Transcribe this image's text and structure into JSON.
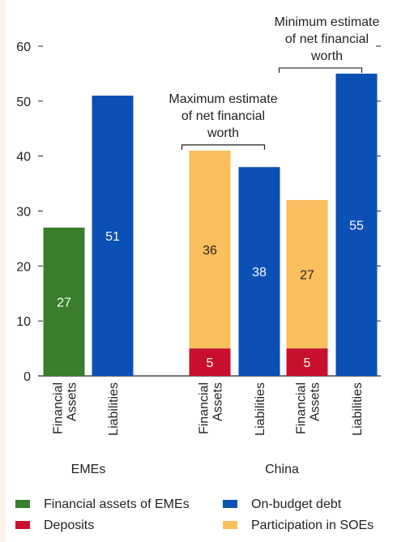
{
  "chart_data": {
    "type": "bar",
    "stacked": true,
    "ylim": [
      0,
      60
    ],
    "yticks": [
      0,
      10,
      20,
      30,
      40,
      50,
      60
    ],
    "groups": [
      {
        "label": "EMEs",
        "bars": [
          {
            "category": "Financial\nAssets",
            "segments": [
              {
                "series": "Financial assets of EMEs",
                "value": 27
              }
            ]
          },
          {
            "category": "Liabilities",
            "segments": [
              {
                "series": "On-budget debt",
                "value": 51
              }
            ]
          }
        ]
      },
      {
        "label": "China",
        "bars": [
          {
            "category": "Financial\nAssets",
            "segments": [
              {
                "series": "Deposits",
                "value": 5
              },
              {
                "series": "Participation in SOEs",
                "value": 36
              }
            ]
          },
          {
            "category": "Liabilities",
            "segments": [
              {
                "series": "On-budget debt",
                "value": 38
              }
            ]
          },
          {
            "category": "Financial\nAssets",
            "segments": [
              {
                "series": "Deposits",
                "value": 5
              },
              {
                "series": "Participation in SOEs",
                "value": 27
              }
            ]
          },
          {
            "category": "Liabilities",
            "segments": [
              {
                "series": "On-budget debt",
                "value": 55
              }
            ]
          }
        ]
      }
    ],
    "series": [
      {
        "name": "Financial assets of EMEs",
        "color": "#3a7d2c",
        "label_color": "#ffffff"
      },
      {
        "name": "On-budget debt",
        "color": "#0a50b5",
        "label_color": "#ffffff"
      },
      {
        "name": "Deposits",
        "color": "#c8102e",
        "label_color": "#ffffff"
      },
      {
        "name": "Participation in SOEs",
        "color": "#fbbf5e",
        "label_color": "#231f20"
      }
    ],
    "annotations": [
      {
        "text": "Maximum estimate\nof net financial\nworth",
        "bracket_bars": [
          2,
          3
        ]
      },
      {
        "text": "Minimum estimate\nof net financial\nworth",
        "bracket_bars": [
          4,
          5
        ]
      }
    ]
  }
}
